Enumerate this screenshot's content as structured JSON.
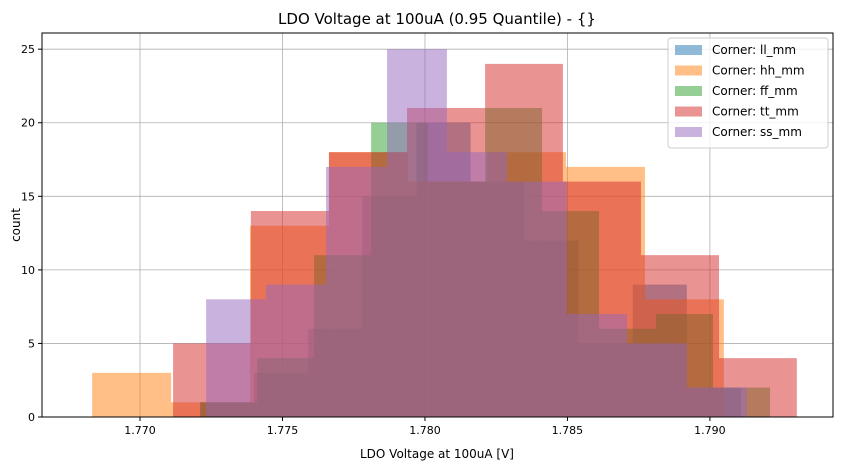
{
  "chart_data": {
    "type": "histogram",
    "title": "LDO Voltage at 100uA (0.95 Quantile) - {}",
    "xlabel": "LDO Voltage at 100uA [V]",
    "ylabel": "count",
    "xlim": [
      1.76656,
      1.79432
    ],
    "ylim": [
      0,
      26.1
    ],
    "xticks": [
      "1.770",
      "1.775",
      "1.780",
      "1.785",
      "1.790"
    ],
    "xtick_values": [
      1.77,
      1.775,
      1.78,
      1.785,
      1.79
    ],
    "yticks": [
      0,
      5,
      10,
      15,
      20,
      25
    ],
    "grid": true,
    "legend_position": "top-right",
    "bar_alpha": 0.5,
    "series": [
      {
        "name": "Corner: ll_mm",
        "color": "#1f77b4",
        "bin_edges": [
          1.77211,
          1.774,
          1.7759,
          1.7778,
          1.7797,
          1.7816,
          1.78349,
          1.78539,
          1.78729,
          1.78919,
          1.79109
        ],
        "counts": [
          1,
          3,
          6,
          15,
          20,
          16,
          12,
          5,
          9,
          2
        ]
      },
      {
        "name": "Corner: hh_mm",
        "color": "#ff7f0e",
        "bin_edges": [
          1.76832,
          1.77109,
          1.77386,
          1.77663,
          1.7794,
          1.78218,
          1.78495,
          1.78772,
          1.79049
        ],
        "counts": [
          3,
          1,
          13,
          18,
          16,
          18,
          17,
          8
        ]
      },
      {
        "name": "Corner: ff_mm",
        "color": "#2ca02c",
        "bin_edges": [
          1.77211,
          1.77411,
          1.77611,
          1.77811,
          1.78011,
          1.78211,
          1.78411,
          1.78611,
          1.78811,
          1.79011,
          1.79211
        ],
        "counts": [
          1,
          4,
          11,
          20,
          16,
          21,
          14,
          6,
          7,
          2
        ]
      },
      {
        "name": "Corner: tt_mm",
        "color": "#d62728",
        "bin_edges": [
          1.77116,
          1.77389,
          1.77663,
          1.77937,
          1.78211,
          1.78484,
          1.78758,
          1.79032,
          1.79305
        ],
        "counts": [
          5,
          14,
          18,
          21,
          24,
          16,
          11,
          4
        ]
      },
      {
        "name": "Corner: ss_mm",
        "color": "#9467bd",
        "bin_edges": [
          1.77232,
          1.77442,
          1.77653,
          1.77867,
          1.78077,
          1.78288,
          1.78498,
          1.78709,
          1.78919,
          1.7913
        ],
        "counts": [
          8,
          9,
          17,
          25,
          18,
          16,
          7,
          5,
          2
        ]
      }
    ]
  }
}
